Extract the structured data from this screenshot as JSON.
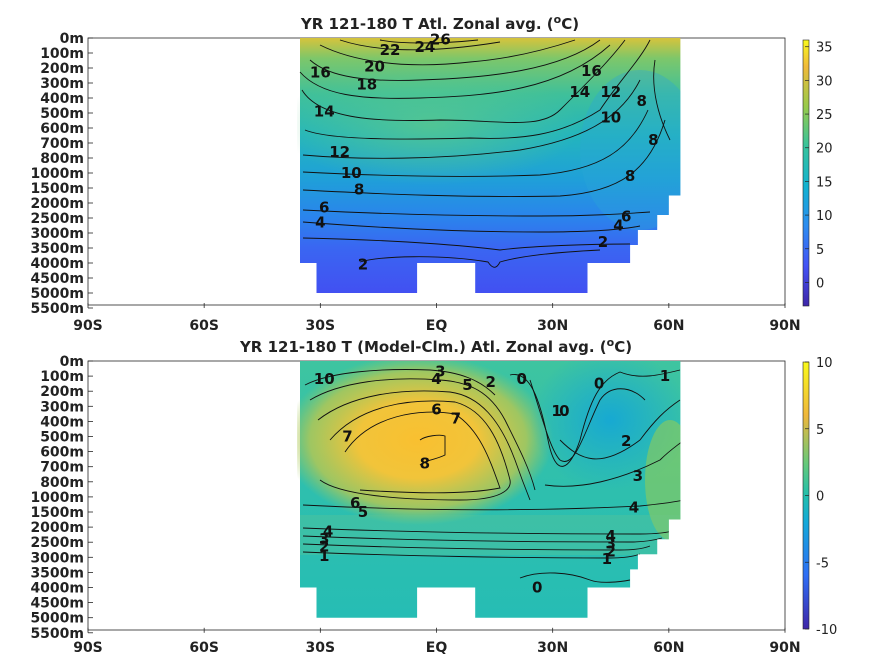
{
  "chart_data": [
    {
      "type": "heatmap",
      "title": "YR 121-180 T Atl. Zonal avg. (",
      "title_sup": "o",
      "title_tail": "C)",
      "x_ticks": [
        "90S",
        "60S",
        "30S",
        "EQ",
        "30N",
        "60N",
        "90N"
      ],
      "y_ticks": [
        "0m",
        "100m",
        "200m",
        "300m",
        "400m",
        "500m",
        "600m",
        "700m",
        "800m",
        "1000m",
        "1500m",
        "2000m",
        "2500m",
        "3000m",
        "3500m",
        "4000m",
        "4500m",
        "5000m",
        "5500m"
      ],
      "xlim": [
        -90,
        90
      ],
      "colorbar": {
        "range": [
          -3.5,
          36
        ],
        "ticks": [
          "0",
          "5",
          "10",
          "15",
          "20",
          "25",
          "30",
          "35"
        ],
        "tick_values": [
          0,
          5,
          10,
          15,
          20,
          25,
          30,
          35
        ]
      },
      "contour_labels": [
        {
          "text": "26",
          "lat": 1,
          "level": 0.1
        },
        {
          "text": "24",
          "lat": -3,
          "level": 0.6
        },
        {
          "text": "22",
          "lat": -12,
          "level": 0.8
        },
        {
          "text": "20",
          "lat": -16,
          "level": 1.9
        },
        {
          "text": "16",
          "lat": -30,
          "level": 2.3
        },
        {
          "text": "18",
          "lat": -18,
          "level": 3.1
        },
        {
          "text": "14",
          "lat": -29,
          "level": 4.9
        },
        {
          "text": "12",
          "lat": -25,
          "level": 7.6
        },
        {
          "text": "10",
          "lat": -22,
          "level": 9.0
        },
        {
          "text": "8",
          "lat": -20,
          "level": 10.1
        },
        {
          "text": "6",
          "lat": -29,
          "level": 11.3
        },
        {
          "text": "4",
          "lat": -30,
          "level": 12.3
        },
        {
          "text": "2",
          "lat": -19,
          "level": 15.1
        },
        {
          "text": "16",
          "lat": 40,
          "level": 2.2
        },
        {
          "text": "14",
          "lat": 37,
          "level": 3.6
        },
        {
          "text": "12",
          "lat": 45,
          "level": 3.6
        },
        {
          "text": "10",
          "lat": 45,
          "level": 5.3
        },
        {
          "text": "8",
          "lat": 53,
          "level": 4.2
        },
        {
          "text": "8",
          "lat": 56,
          "level": 6.8
        },
        {
          "text": "8",
          "lat": 50,
          "level": 9.2
        },
        {
          "text": "6",
          "lat": 49,
          "level": 11.9
        },
        {
          "text": "4",
          "lat": 47,
          "level": 12.5
        },
        {
          "text": "2",
          "lat": 43,
          "level": 13.6
        }
      ]
    },
    {
      "type": "heatmap",
      "title": "YR 121-180 T (Model-Clm.) Atl. Zonal avg. (",
      "title_sup": "o",
      "title_tail": "C)",
      "x_ticks": [
        "90S",
        "60S",
        "30S",
        "EQ",
        "30N",
        "60N",
        "90N"
      ],
      "y_ticks": [
        "0m",
        "100m",
        "200m",
        "300m",
        "400m",
        "500m",
        "600m",
        "700m",
        "800m",
        "1000m",
        "1500m",
        "2000m",
        "2500m",
        "3000m",
        "3500m",
        "4000m",
        "4500m",
        "5000m",
        "5500m"
      ],
      "xlim": [
        -90,
        90
      ],
      "colorbar": {
        "range": [
          -10,
          10
        ],
        "ticks": [
          "10",
          "5",
          "0",
          "-5",
          "-10"
        ],
        "tick_values": [
          10,
          5,
          0,
          -5,
          -10
        ]
      },
      "contour_labels": [
        {
          "text": "10",
          "lat": -29,
          "level": 1.2
        },
        {
          "text": "3",
          "lat": 1,
          "level": 0.7
        },
        {
          "text": "4",
          "lat": 0,
          "level": 1.2
        },
        {
          "text": "5",
          "lat": 8,
          "level": 1.6
        },
        {
          "text": "2",
          "lat": 14,
          "level": 1.4
        },
        {
          "text": "0",
          "lat": 22,
          "level": 1.2
        },
        {
          "text": "0",
          "lat": 42,
          "level": 1.5
        },
        {
          "text": "1",
          "lat": 59,
          "level": 1.0
        },
        {
          "text": "1",
          "lat": 31,
          "level": 3.3
        },
        {
          "text": "0",
          "lat": 33,
          "level": 3.3
        },
        {
          "text": "6",
          "lat": 0,
          "level": 3.2
        },
        {
          "text": "7",
          "lat": 5,
          "level": 3.8
        },
        {
          "text": "7",
          "lat": -23,
          "level": 5.0
        },
        {
          "text": "8",
          "lat": -3,
          "level": 6.8
        },
        {
          "text": "2",
          "lat": 49,
          "level": 5.3
        },
        {
          "text": "3",
          "lat": 52,
          "level": 7.6
        },
        {
          "text": "4",
          "lat": 51,
          "level": 9.7
        },
        {
          "text": "6",
          "lat": -21,
          "level": 9.4
        },
        {
          "text": "5",
          "lat": -19,
          "level": 10.0
        },
        {
          "text": "4",
          "lat": -28,
          "level": 11.3
        },
        {
          "text": "3",
          "lat": -29,
          "level": 11.8
        },
        {
          "text": "2",
          "lat": -29,
          "level": 12.3
        },
        {
          "text": "1",
          "lat": -29,
          "level": 12.9
        },
        {
          "text": "4",
          "lat": 45,
          "level": 11.6
        },
        {
          "text": "3",
          "lat": 45,
          "level": 12.1
        },
        {
          "text": "2",
          "lat": 45,
          "level": 12.6
        },
        {
          "text": "1",
          "lat": 44,
          "level": 13.1
        },
        {
          "text": "0",
          "lat": 26,
          "level": 15.0
        }
      ]
    }
  ]
}
